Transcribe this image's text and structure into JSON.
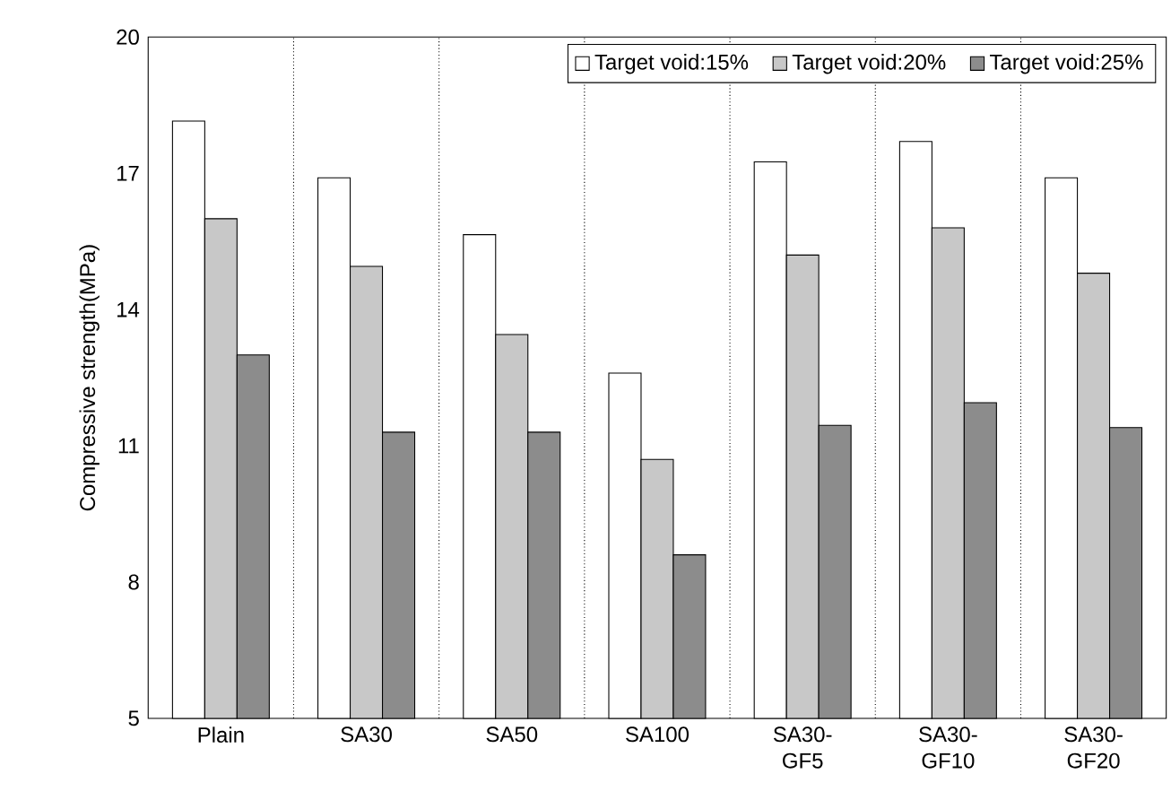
{
  "chart_data": {
    "type": "bar",
    "ylabel": "Compressive strength(MPa)",
    "categories": [
      "Plain",
      "SA30",
      "SA50",
      "SA100",
      "SA30-GF5",
      "SA30-GF10",
      "SA30-GF20"
    ],
    "series": [
      {
        "name": "Target void:15%",
        "color": "#ffffff",
        "values": [
          18.15,
          16.9,
          15.65,
          12.6,
          17.25,
          17.7,
          16.9
        ]
      },
      {
        "name": "Target void:20%",
        "color": "#c8c8c8",
        "values": [
          16.0,
          14.95,
          13.45,
          10.7,
          15.2,
          15.8,
          14.8
        ]
      },
      {
        "name": "Target void:25%",
        "color": "#8c8c8c",
        "values": [
          13.0,
          11.3,
          11.3,
          8.6,
          11.45,
          11.95,
          11.4
        ]
      }
    ],
    "ylim": [
      5,
      20
    ],
    "yticks": [
      5,
      8,
      11,
      14,
      17,
      20
    ],
    "grid": "x",
    "legend": "top right"
  }
}
